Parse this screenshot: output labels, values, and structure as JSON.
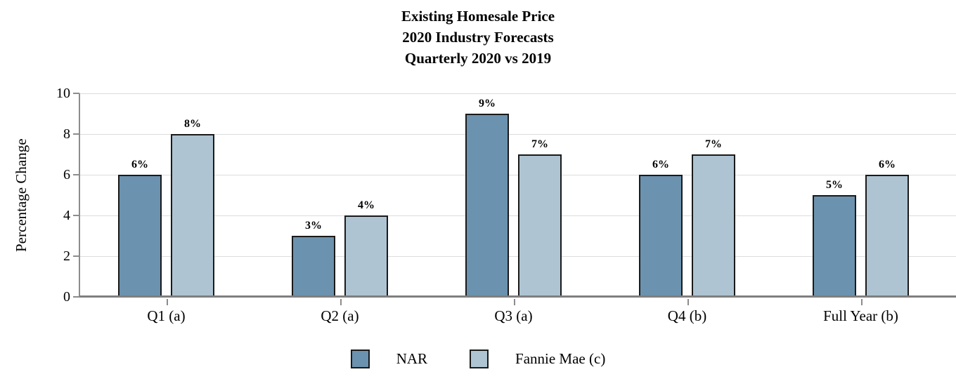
{
  "chart_data": {
    "type": "bar",
    "title_lines": [
      "Existing Homesale Price",
      "2020 Industry Forecasts",
      "Quarterly 2020 vs 2019"
    ],
    "ylabel": "Percentage Change",
    "xlabel": "",
    "ylim": [
      0,
      10
    ],
    "yticks": [
      0,
      2,
      4,
      6,
      8,
      10
    ],
    "grid": true,
    "legend_position": "bottom",
    "categories": [
      "Q1 (a)",
      "Q2 (a)",
      "Q3 (a)",
      "Q4 (b)",
      "Full Year (b)"
    ],
    "series": [
      {
        "name": "NAR",
        "color": "#6B92AE",
        "values": [
          6,
          3,
          9,
          6,
          5
        ],
        "labels": [
          "6%",
          "3%",
          "9%",
          "6%",
          "5%"
        ]
      },
      {
        "name": "Fannie Mae (c)",
        "color": "#AEC4D2",
        "values": [
          8,
          4,
          7,
          7,
          6
        ],
        "labels": [
          "8%",
          "4%",
          "7%",
          "7%",
          "6%"
        ]
      }
    ],
    "colors": {
      "bar_border": "#1a1a1a",
      "gridline": "#dcdcdc",
      "x_axis": "#7f7f7f",
      "y_axis": "#8c8c8c",
      "text": "#000000"
    }
  }
}
